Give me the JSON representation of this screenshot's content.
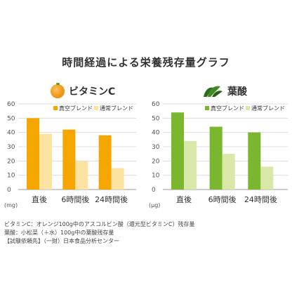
{
  "page_title": "時間経過による栄養残存量グラフ",
  "notes": [
    "ビタミンC：オレンジ100g中のアスコルビン酸（還元型ビタミンC）残存量",
    "葉酸：小松菜（＋水）100g中の葉酸残存量",
    "【試験依頼先】（一財）日本食品分析センター"
  ],
  "chart_data": [
    {
      "type": "bar",
      "title": "ビタミンC",
      "icon": "orange-icon",
      "unit": "(mg)",
      "categories": [
        "直後",
        "6時間後",
        "24時間後"
      ],
      "ylim": [
        0,
        60
      ],
      "yticks": [
        0,
        10,
        20,
        30,
        40,
        50,
        60
      ],
      "grid": true,
      "legend_position": "top-right",
      "series": [
        {
          "name": "真空ブレンド",
          "color": "#f5a700",
          "values": [
            50,
            42,
            38
          ]
        },
        {
          "name": "通常ブレンド",
          "color": "#fde3a1",
          "values": [
            39,
            20,
            15
          ]
        }
      ]
    },
    {
      "type": "bar",
      "title": "葉酸",
      "icon": "spinach-icon",
      "unit": "(μg)",
      "categories": [
        "直後",
        "6時間後",
        "24時間後"
      ],
      "ylim": [
        0,
        60
      ],
      "yticks": [
        0,
        10,
        20,
        30,
        40,
        50,
        60
      ],
      "grid": true,
      "legend_position": "top-right",
      "series": [
        {
          "name": "真空ブレンド",
          "color": "#7ab62e",
          "values": [
            54,
            44,
            40
          ]
        },
        {
          "name": "通常ブレンド",
          "color": "#d8e8a8",
          "values": [
            34,
            25,
            16
          ]
        }
      ]
    }
  ]
}
